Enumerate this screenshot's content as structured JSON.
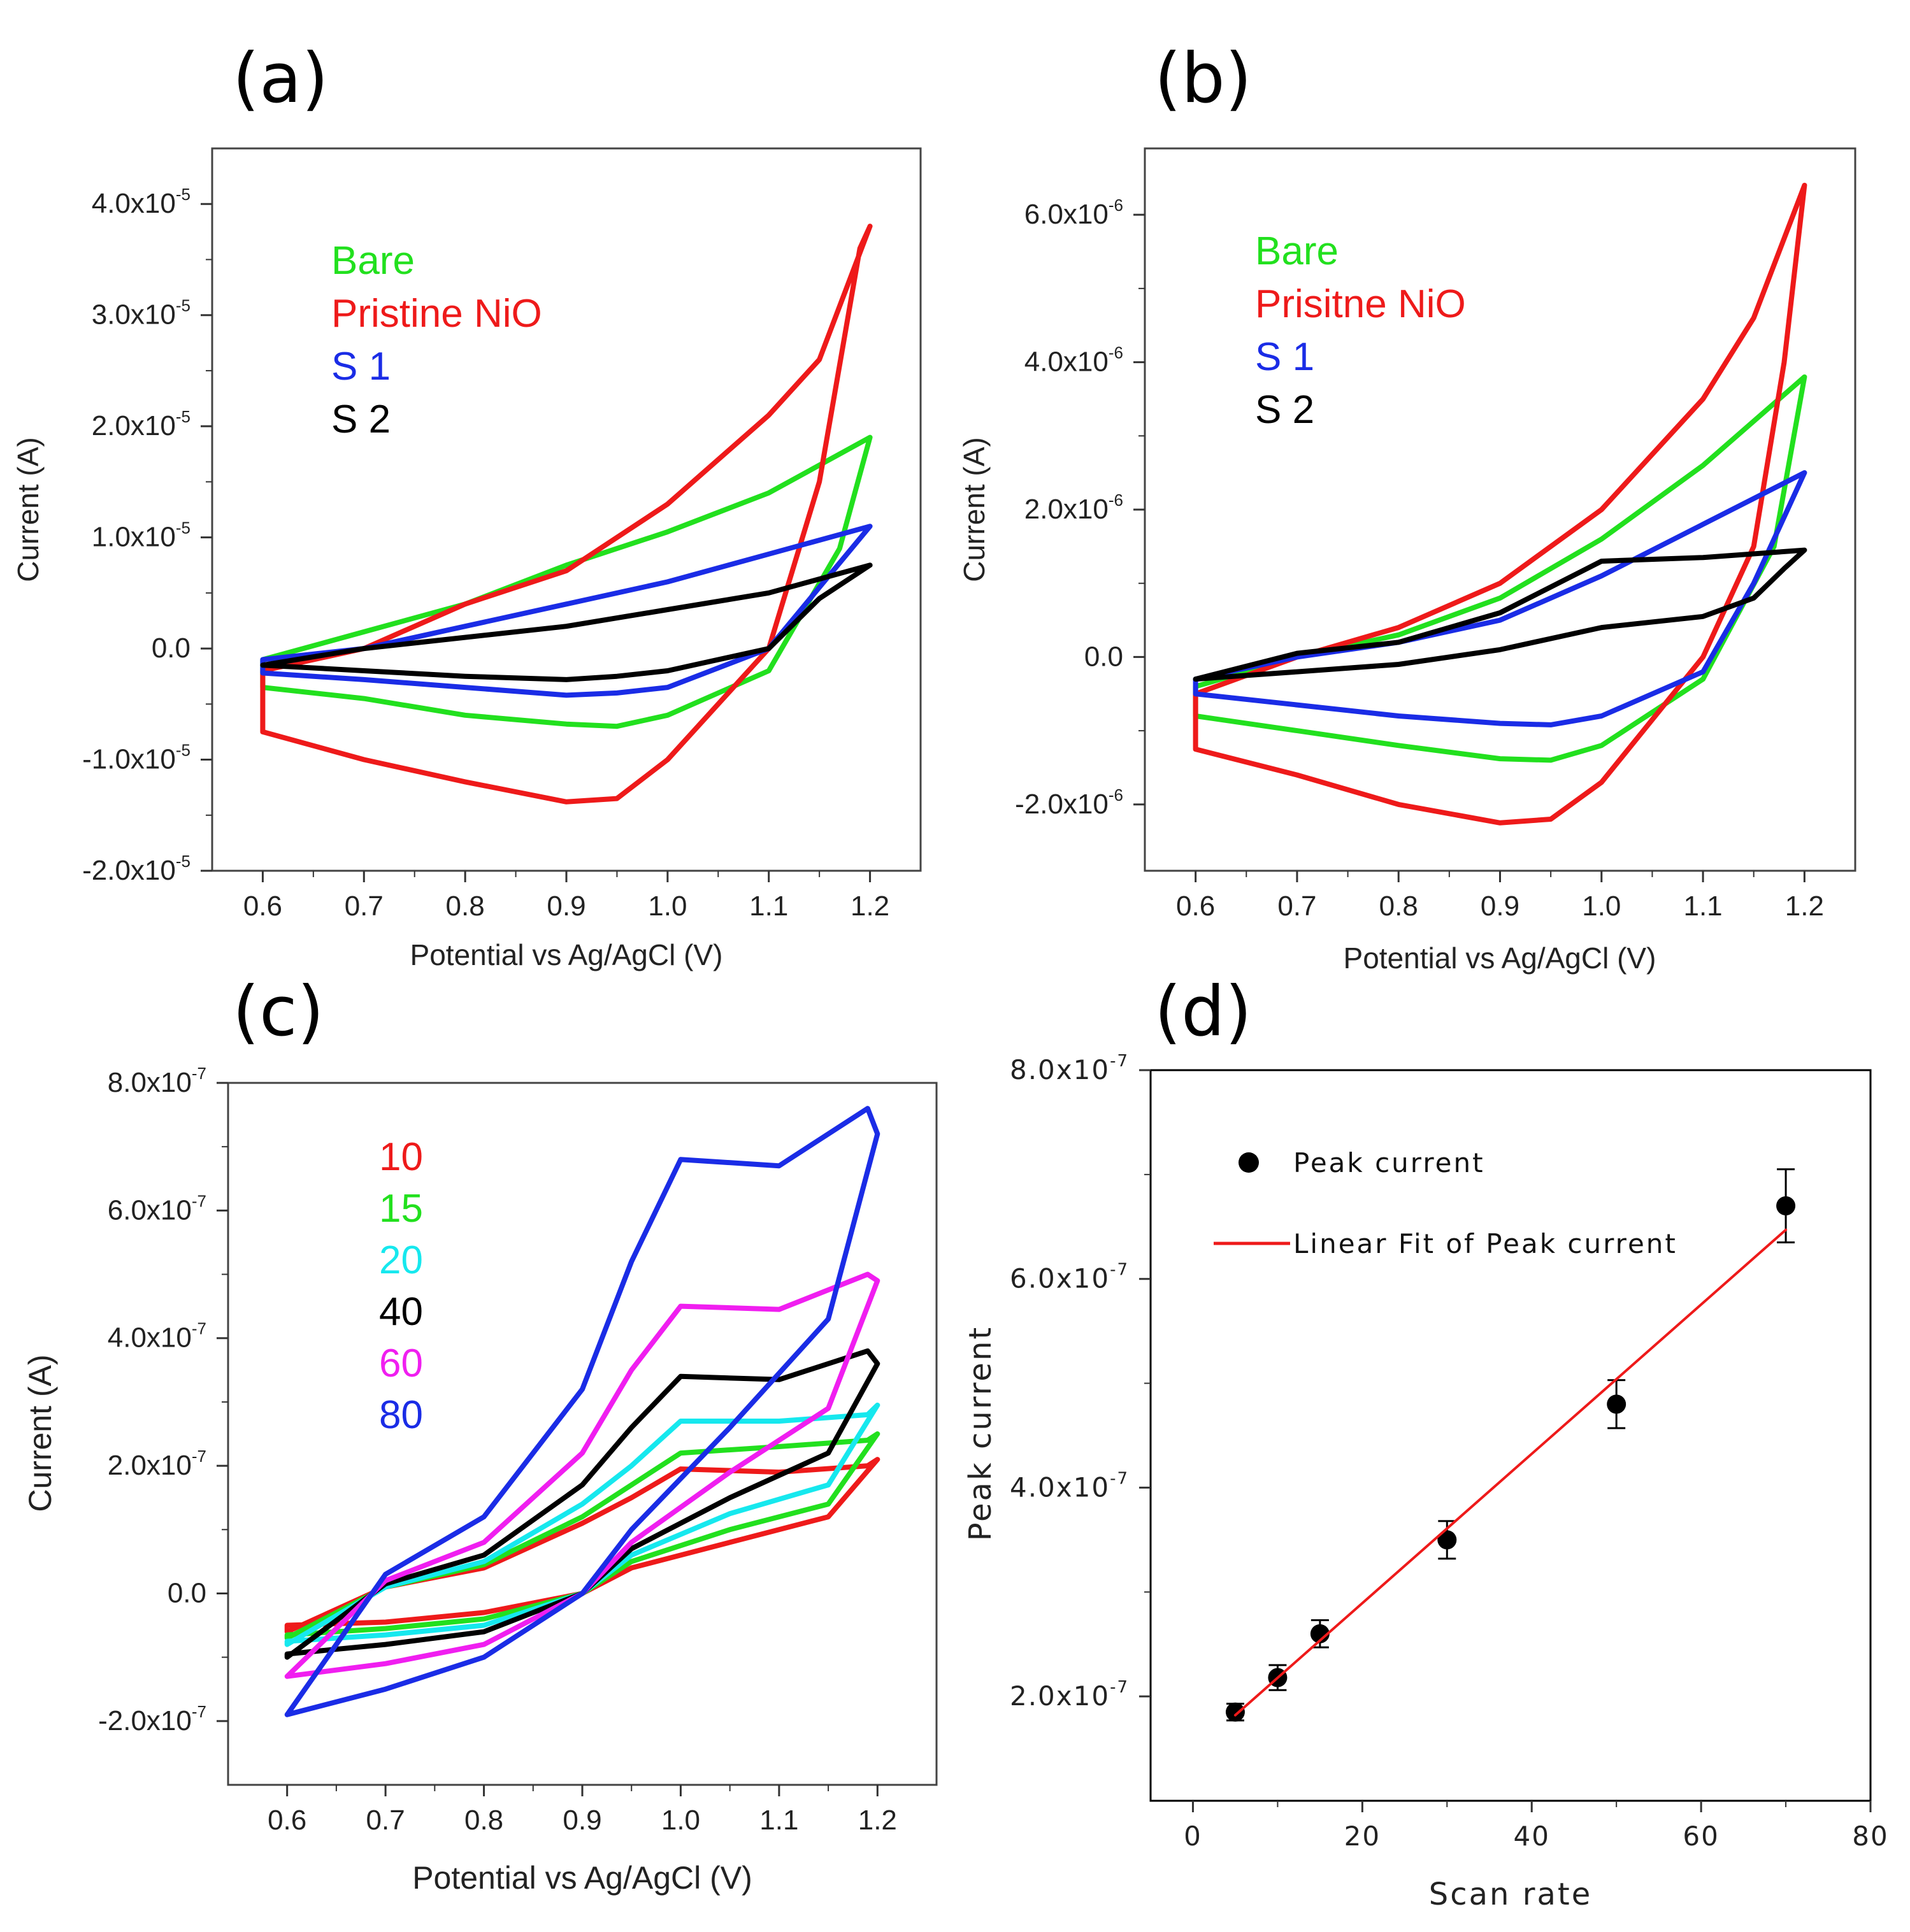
{
  "chart_data": [
    {
      "panel": "(a)",
      "type": "line",
      "xlabel": "Potential vs Ag/AgCl (V)",
      "ylabel": "Current (A)",
      "xlim": [
        0.55,
        1.25
      ],
      "ylim": [
        -2e-05,
        4.5e-05
      ],
      "xticks": [
        0.6,
        0.7,
        0.8,
        0.9,
        1.0,
        1.1,
        1.2
      ],
      "xtick_labels": [
        "0.6",
        "0.7",
        "0.8",
        "0.9",
        "1.0",
        "1.1",
        "1.2"
      ],
      "yticks": [
        {
          "v": 4e-05,
          "m": "4.0x10",
          "e": "-5"
        },
        {
          "v": 3e-05,
          "m": "3.0x10",
          "e": "-5"
        },
        {
          "v": 2e-05,
          "m": "2.0x10",
          "e": "-5"
        },
        {
          "v": 1e-05,
          "m": "1.0x10",
          "e": "-5"
        },
        {
          "v": 0,
          "m": "0.0",
          "e": ""
        },
        {
          "v": -1e-05,
          "m": "-1.0x10",
          "e": "-5"
        },
        {
          "v": -2e-05,
          "m": "-2.0x10",
          "e": "-5"
        }
      ],
      "series": [
        {
          "name": "Bare",
          "color": "#22e01e",
          "x": [
            0.6,
            0.7,
            0.8,
            0.9,
            1.0,
            1.1,
            1.2,
            1.17,
            1.1,
            1.0,
            0.95,
            0.9,
            0.8,
            0.7,
            0.6,
            0.6
          ],
          "y": [
            -1e-06,
            1.5e-06,
            4e-06,
            7.5e-06,
            1.05e-05,
            1.4e-05,
            1.9e-05,
            9e-06,
            -2e-06,
            -6e-06,
            -7e-06,
            -6.8e-06,
            -6e-06,
            -4.5e-06,
            -3.5e-06,
            -1e-06
          ]
        },
        {
          "name": "Pristine NiO",
          "color": "#ee1a1a",
          "x": [
            0.6,
            0.7,
            0.8,
            0.9,
            1.0,
            1.1,
            1.15,
            1.2,
            1.19,
            1.15,
            1.1,
            1.0,
            0.95,
            0.9,
            0.8,
            0.7,
            0.6,
            0.6
          ],
          "y": [
            -2e-06,
            0.0,
            4e-06,
            7e-06,
            1.3e-05,
            2.1e-05,
            2.6e-05,
            3.8e-05,
            3.6e-05,
            1.5e-05,
            0.0,
            -1e-05,
            -1.35e-05,
            -1.38e-05,
            -1.2e-05,
            -1e-05,
            -7.5e-06,
            -2e-06
          ]
        },
        {
          "name": "S 1",
          "color": "#1a2ce6",
          "x": [
            0.6,
            0.7,
            0.8,
            0.9,
            1.0,
            1.1,
            1.2,
            1.15,
            1.1,
            1.0,
            0.95,
            0.9,
            0.8,
            0.7,
            0.6,
            0.6
          ],
          "y": [
            -1e-06,
            0.0,
            2e-06,
            4e-06,
            6e-06,
            8.5e-06,
            1.1e-05,
            5.5e-06,
            0.0,
            -3.5e-06,
            -4e-06,
            -4.2e-06,
            -3.5e-06,
            -2.8e-06,
            -2.2e-06,
            -1e-06
          ]
        },
        {
          "name": "S 2",
          "color": "#000000",
          "x": [
            0.6,
            0.7,
            0.8,
            0.9,
            1.0,
            1.1,
            1.2,
            1.15,
            1.1,
            1.0,
            0.95,
            0.9,
            0.8,
            0.7,
            0.6,
            0.6
          ],
          "y": [
            -1.5e-06,
            0.0,
            1e-06,
            2e-06,
            3.5e-06,
            5e-06,
            7.5e-06,
            4.5e-06,
            0.0,
            -2e-06,
            -2.5e-06,
            -2.8e-06,
            -2.5e-06,
            -2e-06,
            -1.5e-06,
            -1.5e-06
          ]
        }
      ]
    },
    {
      "panel": "(b)",
      "type": "line",
      "xlabel": "Potential vs Ag/AgCl (V)",
      "ylabel": "Current (A)",
      "xlim": [
        0.55,
        1.25
      ],
      "ylim": [
        -2.9e-06,
        6.9e-06
      ],
      "xticks": [
        0.6,
        0.7,
        0.8,
        0.9,
        1.0,
        1.1,
        1.2
      ],
      "xtick_labels": [
        "0.6",
        "0.7",
        "0.8",
        "0.9",
        "1.0",
        "1.1",
        "1.2"
      ],
      "yticks": [
        {
          "v": 6e-06,
          "m": "6.0x10",
          "e": "-6"
        },
        {
          "v": 4e-06,
          "m": "4.0x10",
          "e": "-6"
        },
        {
          "v": 2e-06,
          "m": "2.0x10",
          "e": "-6"
        },
        {
          "v": 0,
          "m": "0.0",
          "e": ""
        },
        {
          "v": -2e-06,
          "m": "-2.0x10",
          "e": "-6"
        }
      ],
      "series": [
        {
          "name": "Bare",
          "color": "#22e01e",
          "x": [
            0.6,
            0.7,
            0.8,
            0.9,
            1.0,
            1.1,
            1.2,
            1.17,
            1.1,
            1.0,
            0.95,
            0.9,
            0.8,
            0.7,
            0.6,
            0.6
          ],
          "y": [
            -4e-07,
            0.0,
            3e-07,
            8e-07,
            1.6e-06,
            2.6e-06,
            3.8e-06,
            1.5e-06,
            -3e-07,
            -1.2e-06,
            -1.4e-06,
            -1.38e-06,
            -1.2e-06,
            -1e-06,
            -8e-07,
            -4e-07
          ]
        },
        {
          "name": "Prisitne NiO",
          "color": "#ee1a1a",
          "x": [
            0.6,
            0.7,
            0.8,
            0.9,
            1.0,
            1.1,
            1.15,
            1.2,
            1.18,
            1.15,
            1.1,
            1.0,
            0.95,
            0.9,
            0.8,
            0.7,
            0.6,
            0.6
          ],
          "y": [
            -5e-07,
            0.0,
            4e-07,
            1e-06,
            2e-06,
            3.5e-06,
            4.6e-06,
            6.4e-06,
            4e-06,
            1.5e-06,
            0.0,
            -1.7e-06,
            -2.2e-06,
            -2.25e-06,
            -2e-06,
            -1.6e-06,
            -1.25e-06,
            -5e-07
          ]
        },
        {
          "name": "S 1",
          "color": "#1a2ce6",
          "x": [
            0.6,
            0.7,
            0.8,
            0.9,
            1.0,
            1.1,
            1.2,
            1.15,
            1.1,
            1.0,
            0.95,
            0.9,
            0.8,
            0.7,
            0.6,
            0.6
          ],
          "y": [
            -3e-07,
            0.0,
            2e-07,
            5e-07,
            1.1e-06,
            1.8e-06,
            2.5e-06,
            1e-06,
            -2e-07,
            -8e-07,
            -9.2e-07,
            -9e-07,
            -8e-07,
            -6.5e-07,
            -5e-07,
            -3e-07
          ]
        },
        {
          "name": "S 2",
          "color": "#000000",
          "x": [
            0.6,
            0.7,
            0.8,
            0.9,
            1.0,
            1.1,
            1.2,
            1.18,
            1.15,
            1.1,
            1.0,
            0.9,
            0.8,
            0.7,
            0.6,
            0.6
          ],
          "y": [
            -3e-07,
            5e-08,
            2e-07,
            6e-07,
            1.3e-06,
            1.35e-06,
            1.45e-06,
            1.2e-06,
            8e-07,
            5.5e-07,
            4e-07,
            1e-07,
            -1e-07,
            -2e-07,
            -3e-07,
            -3e-07
          ]
        }
      ]
    },
    {
      "panel": "(c)",
      "type": "line",
      "xlabel": "Potential vs Ag/AgCl (V)",
      "ylabel": "Current (A)",
      "xlim": [
        0.54,
        1.26
      ],
      "ylim": [
        -3e-07,
        8e-07
      ],
      "xticks": [
        0.6,
        0.7,
        0.8,
        0.9,
        1.0,
        1.1,
        1.2
      ],
      "xtick_labels": [
        "0.6",
        "0.7",
        "0.8",
        "0.9",
        "1.0",
        "1.1",
        "1.2"
      ],
      "yticks": [
        {
          "v": 8e-07,
          "m": "8.0x10",
          "e": "-7"
        },
        {
          "v": 6e-07,
          "m": "6.0x10",
          "e": "-7"
        },
        {
          "v": 4e-07,
          "m": "4.0x10",
          "e": "-7"
        },
        {
          "v": 2e-07,
          "m": "2.0x10",
          "e": "-7"
        },
        {
          "v": 0,
          "m": "0.0",
          "e": ""
        },
        {
          "v": -2e-07,
          "m": "-2.0x10",
          "e": "-7"
        }
      ],
      "series": [
        {
          "name": "10",
          "color": "#ee1a1a",
          "x": [
            0.6,
            0.7,
            0.8,
            0.9,
            0.95,
            1.0,
            1.1,
            1.19,
            1.2,
            1.15,
            1.05,
            0.95,
            0.9,
            0.8,
            0.7,
            0.6,
            0.6
          ],
          "y": [
            -6e-08,
            1e-08,
            4e-08,
            1.1e-07,
            1.5e-07,
            1.95e-07,
            1.9e-07,
            2e-07,
            2.1e-07,
            1.2e-07,
            8e-08,
            4e-08,
            0.0,
            -3e-08,
            -4.5e-08,
            -5e-08,
            -6e-08
          ]
        },
        {
          "name": "15",
          "color": "#22e01e",
          "x": [
            0.6,
            0.7,
            0.8,
            0.9,
            0.95,
            1.0,
            1.1,
            1.19,
            1.2,
            1.15,
            1.05,
            0.95,
            0.9,
            0.8,
            0.7,
            0.6,
            0.6
          ],
          "y": [
            -7e-08,
            1e-08,
            4.5e-08,
            1.2e-07,
            1.7e-07,
            2.2e-07,
            2.3e-07,
            2.4e-07,
            2.5e-07,
            1.4e-07,
            1e-07,
            5e-08,
            0.0,
            -4e-08,
            -5.5e-08,
            -6.5e-08,
            -7e-08
          ]
        },
        {
          "name": "20",
          "color": "#16e8ee",
          "x": [
            0.6,
            0.7,
            0.8,
            0.9,
            0.95,
            1.0,
            1.1,
            1.19,
            1.2,
            1.15,
            1.05,
            0.95,
            0.9,
            0.8,
            0.7,
            0.6,
            0.6
          ],
          "y": [
            -8e-08,
            1e-08,
            5e-08,
            1.4e-07,
            2e-07,
            2.7e-07,
            2.7e-07,
            2.8e-07,
            2.95e-07,
            1.7e-07,
            1.25e-07,
            6e-08,
            0.0,
            -5e-08,
            -6.5e-08,
            -7.5e-08,
            -8e-08
          ]
        },
        {
          "name": "40",
          "color": "#000000",
          "x": [
            0.6,
            0.7,
            0.8,
            0.9,
            0.95,
            1.0,
            1.1,
            1.19,
            1.2,
            1.15,
            1.05,
            0.95,
            0.9,
            0.8,
            0.7,
            0.6,
            0.6
          ],
          "y": [
            -1e-07,
            1.5e-08,
            6e-08,
            1.7e-07,
            2.6e-07,
            3.4e-07,
            3.35e-07,
            3.8e-07,
            3.6e-07,
            2.2e-07,
            1.5e-07,
            7e-08,
            0.0,
            -6e-08,
            -8e-08,
            -9.5e-08,
            -1e-07
          ]
        },
        {
          "name": "60",
          "color": "#f01ef0",
          "x": [
            0.6,
            0.7,
            0.8,
            0.9,
            0.95,
            1.0,
            1.1,
            1.19,
            1.2,
            1.15,
            1.05,
            0.95,
            0.9,
            0.8,
            0.7,
            0.6,
            0.6
          ],
          "y": [
            -1.3e-07,
            2e-08,
            8e-08,
            2.2e-07,
            3.5e-07,
            4.5e-07,
            4.45e-07,
            5e-07,
            4.9e-07,
            2.9e-07,
            1.9e-07,
            8e-08,
            0.0,
            -8e-08,
            -1.1e-07,
            -1.3e-07,
            -1.3e-07
          ]
        },
        {
          "name": "80",
          "color": "#1a2ce6",
          "x": [
            0.6,
            0.7,
            0.8,
            0.9,
            0.95,
            1.0,
            1.1,
            1.19,
            1.2,
            1.15,
            1.05,
            0.95,
            0.9,
            0.8,
            0.7,
            0.6,
            0.6
          ],
          "y": [
            -1.9e-07,
            3e-08,
            1.2e-07,
            3.2e-07,
            5.2e-07,
            6.8e-07,
            6.7e-07,
            7.6e-07,
            7.2e-07,
            4.3e-07,
            2.6e-07,
            1e-07,
            0.0,
            -1e-07,
            -1.5e-07,
            -1.9e-07,
            -1.9e-07
          ]
        }
      ]
    },
    {
      "panel": "(d)",
      "type": "scatter",
      "xlabel": "Scan rate",
      "ylabel": "Peak current",
      "xlim": [
        -5,
        80
      ],
      "ylim": [
        1e-07,
        8e-07
      ],
      "xticks": [
        0,
        20,
        40,
        60,
        80
      ],
      "xtick_labels": [
        "0",
        "20",
        "40",
        "60",
        "80"
      ],
      "yticks": [
        {
          "v": 8e-07,
          "m": "8.0x10",
          "e": "-7"
        },
        {
          "v": 6e-07,
          "m": "6.0x10",
          "e": "-7"
        },
        {
          "v": 4e-07,
          "m": "4.0x10",
          "e": "-7"
        },
        {
          "v": 2e-07,
          "m": "2.0x10",
          "e": "-7"
        }
      ],
      "series": [
        {
          "name": "Peak current",
          "color": "#000000",
          "x": [
            5,
            10,
            15,
            30,
            50,
            70
          ],
          "y": [
            1.85e-07,
            2.18e-07,
            2.6e-07,
            3.5e-07,
            4.8e-07,
            6.7e-07
          ],
          "err": [
            8e-09,
            1.2e-08,
            1.3e-08,
            1.8e-08,
            2.3e-08,
            3.5e-08
          ]
        },
        {
          "name": "Linear Fit of Peak current",
          "color": "#ee1a1a",
          "fit": true,
          "x": [
            5,
            70
          ],
          "y": [
            1.82e-07,
            6.47e-07
          ]
        }
      ]
    }
  ]
}
